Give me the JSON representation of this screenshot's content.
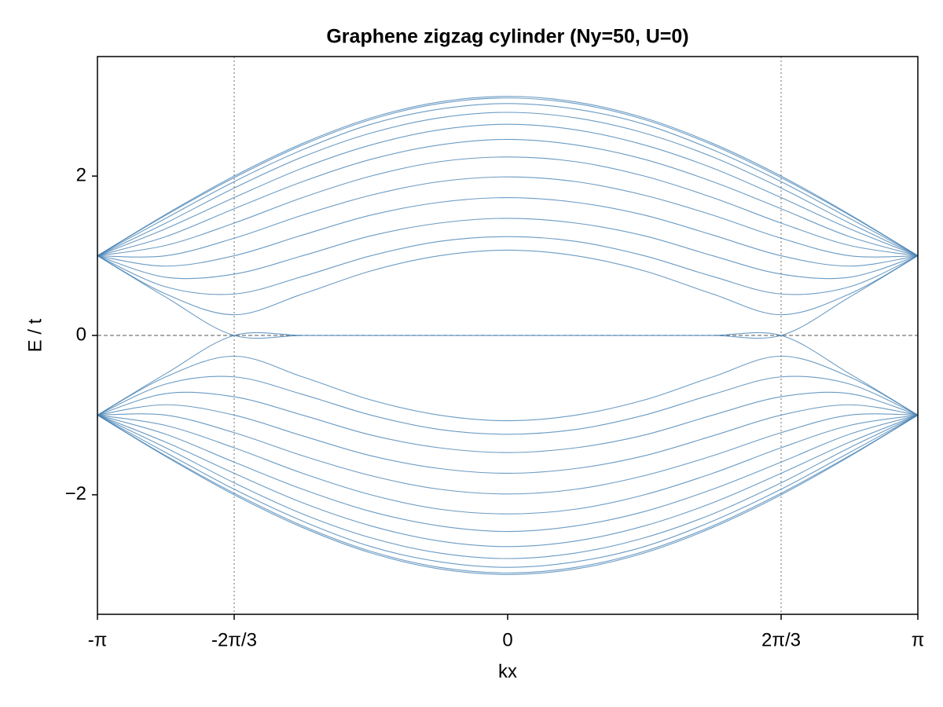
{
  "chart_data": {
    "type": "line",
    "title": "Graphene zigzag cylinder (Ny=50, U=0)",
    "x_label": "kx",
    "y_label": "E / t",
    "color": "#4682b4",
    "x": [
      -3.1416,
      -2.618,
      -2.0944,
      -1.5708,
      -1.0472,
      -0.5236,
      0,
      0.5236,
      1.0472,
      1.5708,
      2.0944,
      2.618,
      3.1416
    ],
    "xlim": [
      -3.1416,
      3.1416
    ],
    "xticks": [
      {
        "value": -3.1416,
        "label": "-π"
      },
      {
        "value": -2.0944,
        "label": "-2π/3"
      },
      0,
      {
        "value": 2.0944,
        "label": "2π/3"
      },
      {
        "value": 3.1416,
        "label": "π"
      }
    ],
    "ylim": [
      -3.5,
      3.5
    ],
    "yticks": [
      {
        "value": -2,
        "label": "−2"
      },
      0,
      2
    ],
    "vlines": [
      -2.0944,
      2.0944
    ],
    "hlines": [
      0
    ],
    "series": [
      {
        "values": [
          1,
          1.52,
          2,
          2.41,
          2.73,
          2.93,
          3,
          2.93,
          2.73,
          2.41,
          2,
          1.52,
          1
        ]
      },
      {
        "values": [
          1,
          1.51,
          1.98,
          2.39,
          2.71,
          2.91,
          2.98,
          2.91,
          2.71,
          2.39,
          1.98,
          1.51,
          1
        ]
      },
      {
        "values": [
          1,
          1.47,
          1.93,
          2.33,
          2.65,
          2.84,
          2.91,
          2.84,
          2.65,
          2.33,
          1.93,
          1.47,
          1
        ]
      },
      {
        "values": [
          1,
          1.41,
          1.85,
          2.24,
          2.54,
          2.73,
          2.8,
          2.73,
          2.54,
          2.24,
          1.85,
          1.41,
          1
        ]
      },
      {
        "values": [
          1,
          1.34,
          1.73,
          2.1,
          2.39,
          2.58,
          2.65,
          2.58,
          2.39,
          2.1,
          1.73,
          1.34,
          1
        ]
      },
      {
        "values": [
          1,
          1.24,
          1.59,
          1.93,
          2.21,
          2.39,
          2.46,
          2.39,
          2.21,
          1.93,
          1.59,
          1.24,
          1
        ]
      },
      {
        "values": [
          1,
          1.13,
          1.41,
          1.73,
          2,
          2.18,
          2.24,
          2.18,
          2,
          1.73,
          1.41,
          1.13,
          1
        ]
      },
      {
        "values": [
          1,
          1,
          1.22,
          1.51,
          1.76,
          1.93,
          1.99,
          1.93,
          1.76,
          1.51,
          1.22,
          1,
          1
        ]
      },
      {
        "values": [
          1,
          0.87,
          1,
          1.26,
          1.51,
          1.67,
          1.73,
          1.67,
          1.51,
          1.26,
          1,
          0.87,
          1
        ]
      },
      {
        "values": [
          1,
          0.73,
          0.77,
          1,
          1.25,
          1.41,
          1.47,
          1.41,
          1.25,
          1,
          0.77,
          0.73,
          1
        ]
      },
      {
        "values": [
          1,
          0.61,
          0.52,
          0.74,
          1,
          1.18,
          1.24,
          1.18,
          1,
          0.74,
          0.52,
          0.61,
          1
        ]
      },
      {
        "values": [
          1,
          0.52,
          0.26,
          0.52,
          0.81,
          1,
          1.07,
          1,
          0.81,
          0.52,
          0.26,
          0.52,
          1
        ]
      },
      {
        "values": [
          1,
          0.48,
          0,
          0,
          0,
          0,
          0,
          0,
          0,
          0,
          0,
          0.48,
          1
        ]
      },
      {
        "values": [
          -1,
          -0.48,
          0,
          0,
          0,
          0,
          0,
          0,
          0,
          0,
          0,
          -0.48,
          -1
        ]
      },
      {
        "values": [
          -1,
          -0.52,
          -0.26,
          -0.52,
          -0.81,
          -1,
          -1.07,
          -1,
          -0.81,
          -0.52,
          -0.26,
          -0.52,
          -1
        ]
      },
      {
        "values": [
          -1,
          -0.61,
          -0.52,
          -0.74,
          -1,
          -1.18,
          -1.24,
          -1.18,
          -1,
          -0.74,
          -0.52,
          -0.61,
          -1
        ]
      },
      {
        "values": [
          -1,
          -0.73,
          -0.77,
          -1,
          -1.25,
          -1.41,
          -1.47,
          -1.41,
          -1.25,
          -1,
          -0.77,
          -0.73,
          -1
        ]
      },
      {
        "values": [
          -1,
          -0.87,
          -1,
          -1.26,
          -1.51,
          -1.67,
          -1.73,
          -1.67,
          -1.51,
          -1.26,
          -1,
          -0.87,
          -1
        ]
      },
      {
        "values": [
          -1,
          -1,
          -1.22,
          -1.51,
          -1.76,
          -1.93,
          -1.99,
          -1.93,
          -1.76,
          -1.51,
          -1.22,
          -1,
          -1
        ]
      },
      {
        "values": [
          -1,
          -1.13,
          -1.41,
          -1.73,
          -2,
          -2.18,
          -2.24,
          -2.18,
          -2,
          -1.73,
          -1.41,
          -1.13,
          -1
        ]
      },
      {
        "values": [
          -1,
          -1.24,
          -1.59,
          -1.93,
          -2.21,
          -2.39,
          -2.46,
          -2.39,
          -2.21,
          -1.93,
          -1.59,
          -1.24,
          -1
        ]
      },
      {
        "values": [
          -1,
          -1.34,
          -1.73,
          -2.1,
          -2.39,
          -2.58,
          -2.65,
          -2.58,
          -2.39,
          -2.1,
          -1.73,
          -1.34,
          -1
        ]
      },
      {
        "values": [
          -1,
          -1.41,
          -1.85,
          -2.24,
          -2.54,
          -2.73,
          -2.8,
          -2.73,
          -2.54,
          -2.24,
          -1.85,
          -1.41,
          -1
        ]
      },
      {
        "values": [
          -1,
          -1.47,
          -1.93,
          -2.33,
          -2.65,
          -2.84,
          -2.91,
          -2.84,
          -2.65,
          -2.33,
          -1.93,
          -1.47,
          -1
        ]
      },
      {
        "values": [
          -1,
          -1.51,
          -1.98,
          -2.39,
          -2.71,
          -2.91,
          -2.98,
          -2.91,
          -2.71,
          -2.39,
          -1.98,
          -1.51,
          -1
        ]
      },
      {
        "values": [
          -1,
          -1.52,
          -2,
          -2.41,
          -2.73,
          -2.93,
          -3,
          -2.93,
          -2.73,
          -2.41,
          -2,
          -1.52,
          -1
        ]
      }
    ]
  }
}
